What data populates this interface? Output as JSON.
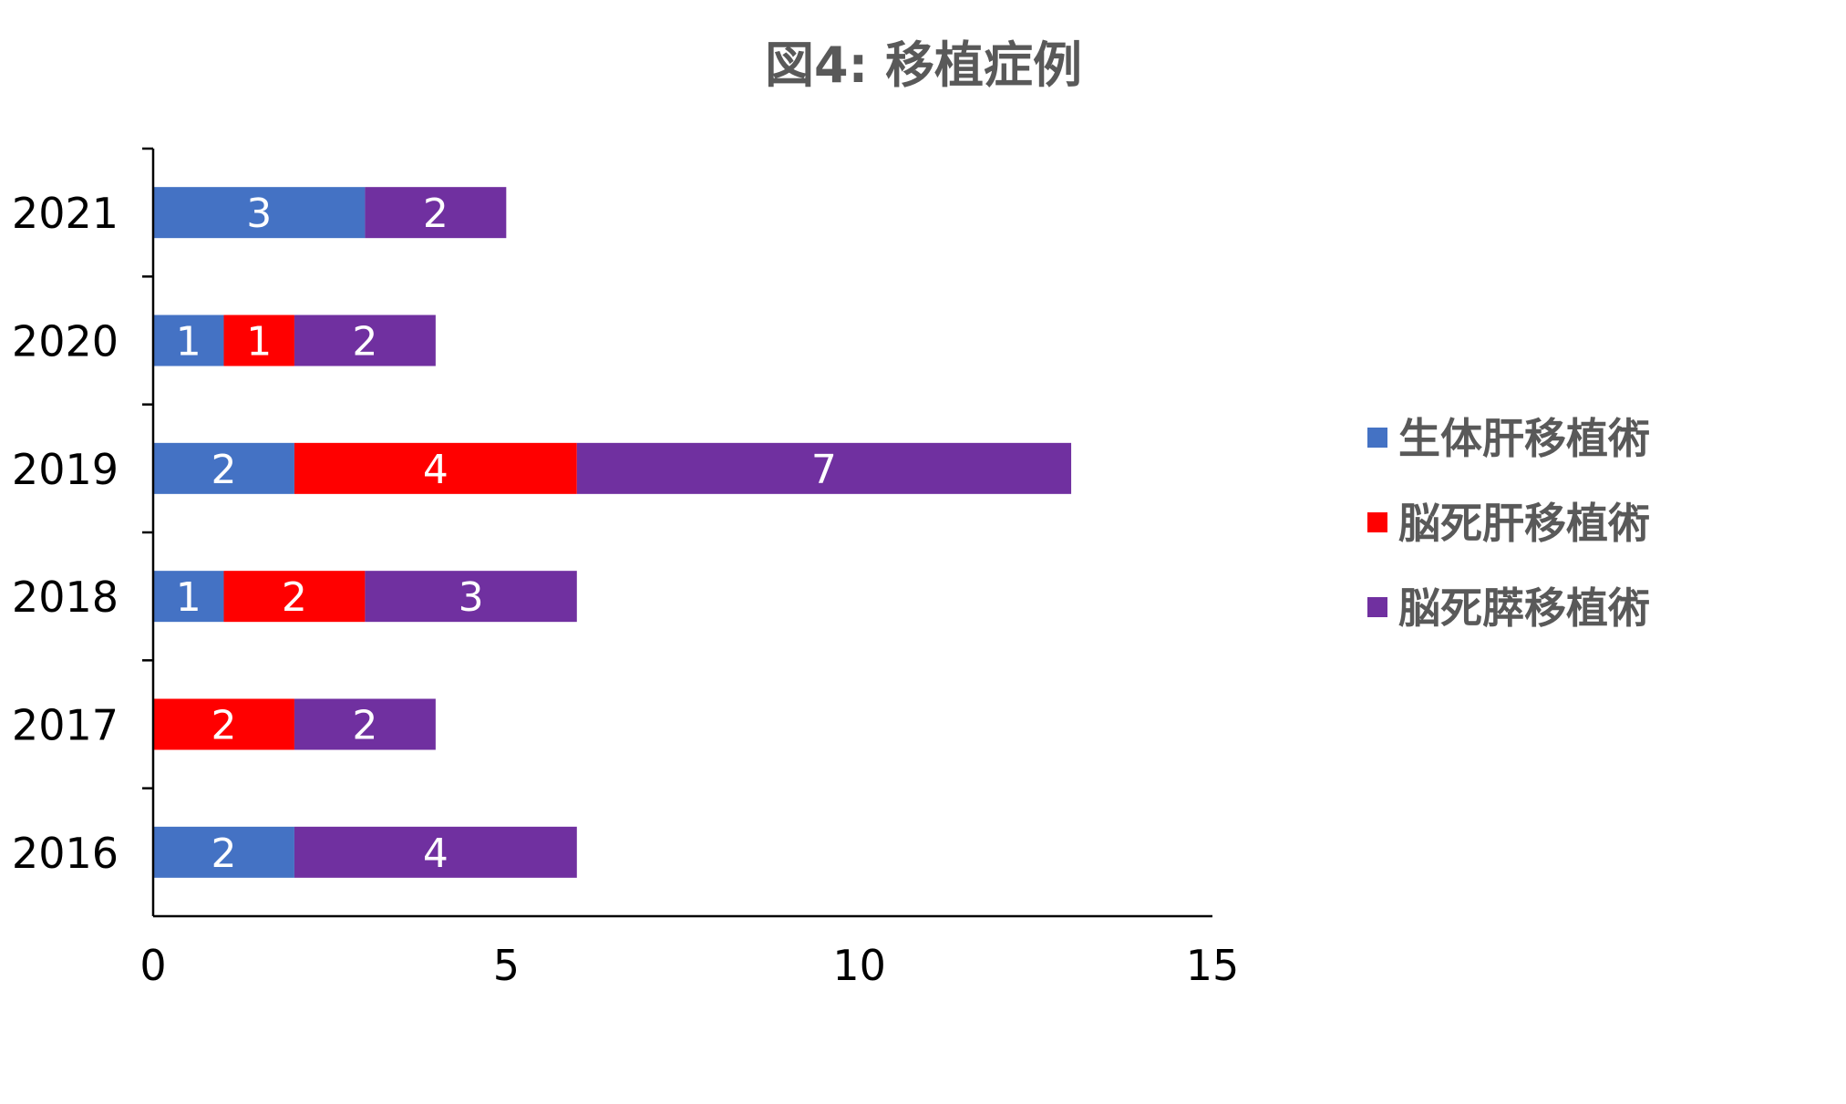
{
  "chart_data": {
    "type": "bar",
    "orientation": "horizontal",
    "stacked": true,
    "title": "図4: 移植症例",
    "xlabel": "",
    "ylabel": "",
    "categories": [
      "2021",
      "2020",
      "2019",
      "2018",
      "2017",
      "2016"
    ],
    "series": [
      {
        "name": "生体肝移植術",
        "color": "#4472C4",
        "values": [
          3,
          1,
          2,
          1,
          0,
          2
        ]
      },
      {
        "name": "脳死肝移植術",
        "color": "#FF0000",
        "values": [
          0,
          1,
          4,
          2,
          2,
          0
        ]
      },
      {
        "name": "脳死膵移植術",
        "color": "#7030A0",
        "values": [
          2,
          2,
          7,
          3,
          2,
          4
        ]
      }
    ],
    "xlim": [
      0,
      15
    ],
    "xticks": [
      0,
      5,
      10,
      15
    ],
    "grid": false,
    "legend_position": "right"
  }
}
